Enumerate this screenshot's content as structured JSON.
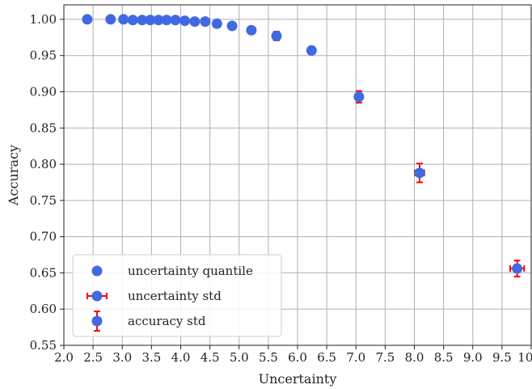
{
  "chart_data": {
    "type": "scatter",
    "xlabel": "Uncertainty",
    "ylabel": "Accuracy",
    "xlim": [
      2.0,
      10.0
    ],
    "ylim": [
      0.55,
      1.02
    ],
    "xticks": [
      "2.0",
      "2.5",
      "3.0",
      "3.5",
      "4.0",
      "4.5",
      "5.0",
      "5.5",
      "6.0",
      "6.5",
      "7.0",
      "7.5",
      "8.0",
      "8.5",
      "9.0",
      "9.5",
      "10.0"
    ],
    "yticks": [
      "0.55",
      "0.60",
      "0.65",
      "0.70",
      "0.75",
      "0.80",
      "0.85",
      "0.90",
      "0.95",
      "1.00"
    ],
    "grid": true,
    "legend_position": "lower-left",
    "colors": {
      "marker": "#4169e1",
      "errorbar": "#ff0000",
      "grid": "#b0b0b0"
    },
    "legend": [
      {
        "label": "uncertainty quantile",
        "style": "marker"
      },
      {
        "label": "uncertainty std",
        "style": "xerr"
      },
      {
        "label": "accuracy std",
        "style": "yerr"
      }
    ],
    "points": [
      {
        "x": 2.4,
        "y": 1.0,
        "xerr": 0.0,
        "yerr": 0.0
      },
      {
        "x": 2.8,
        "y": 1.0,
        "xerr": 0.0,
        "yerr": 0.0
      },
      {
        "x": 3.02,
        "y": 1.0,
        "xerr": 0.0,
        "yerr": 0.0
      },
      {
        "x": 3.18,
        "y": 0.999,
        "xerr": 0.0,
        "yerr": 0.0
      },
      {
        "x": 3.34,
        "y": 0.999,
        "xerr": 0.0,
        "yerr": 0.0
      },
      {
        "x": 3.48,
        "y": 0.999,
        "xerr": 0.0,
        "yerr": 0.0
      },
      {
        "x": 3.62,
        "y": 0.999,
        "xerr": 0.0,
        "yerr": 0.0
      },
      {
        "x": 3.76,
        "y": 0.999,
        "xerr": 0.0,
        "yerr": 0.0
      },
      {
        "x": 3.91,
        "y": 0.999,
        "xerr": 0.0,
        "yerr": 0.0
      },
      {
        "x": 4.07,
        "y": 0.998,
        "xerr": 0.0,
        "yerr": 0.0
      },
      {
        "x": 4.24,
        "y": 0.997,
        "xerr": 0.0,
        "yerr": 0.0
      },
      {
        "x": 4.42,
        "y": 0.997,
        "xerr": 0.0,
        "yerr": 0.0
      },
      {
        "x": 4.62,
        "y": 0.994,
        "xerr": 0.0,
        "yerr": 0.001
      },
      {
        "x": 4.88,
        "y": 0.991,
        "xerr": 0.0,
        "yerr": 0.002
      },
      {
        "x": 5.21,
        "y": 0.985,
        "xerr": 0.0,
        "yerr": 0.003
      },
      {
        "x": 5.64,
        "y": 0.977,
        "xerr": 0.04,
        "yerr": 0.006
      },
      {
        "x": 6.24,
        "y": 0.957,
        "xerr": 0.05,
        "yerr": 0.005
      },
      {
        "x": 7.05,
        "y": 0.893,
        "xerr": 0.04,
        "yerr": 0.008
      },
      {
        "x": 8.09,
        "y": 0.788,
        "xerr": 0.08,
        "yerr": 0.013
      },
      {
        "x": 9.76,
        "y": 0.656,
        "xerr": 0.12,
        "yerr": 0.011
      }
    ]
  }
}
